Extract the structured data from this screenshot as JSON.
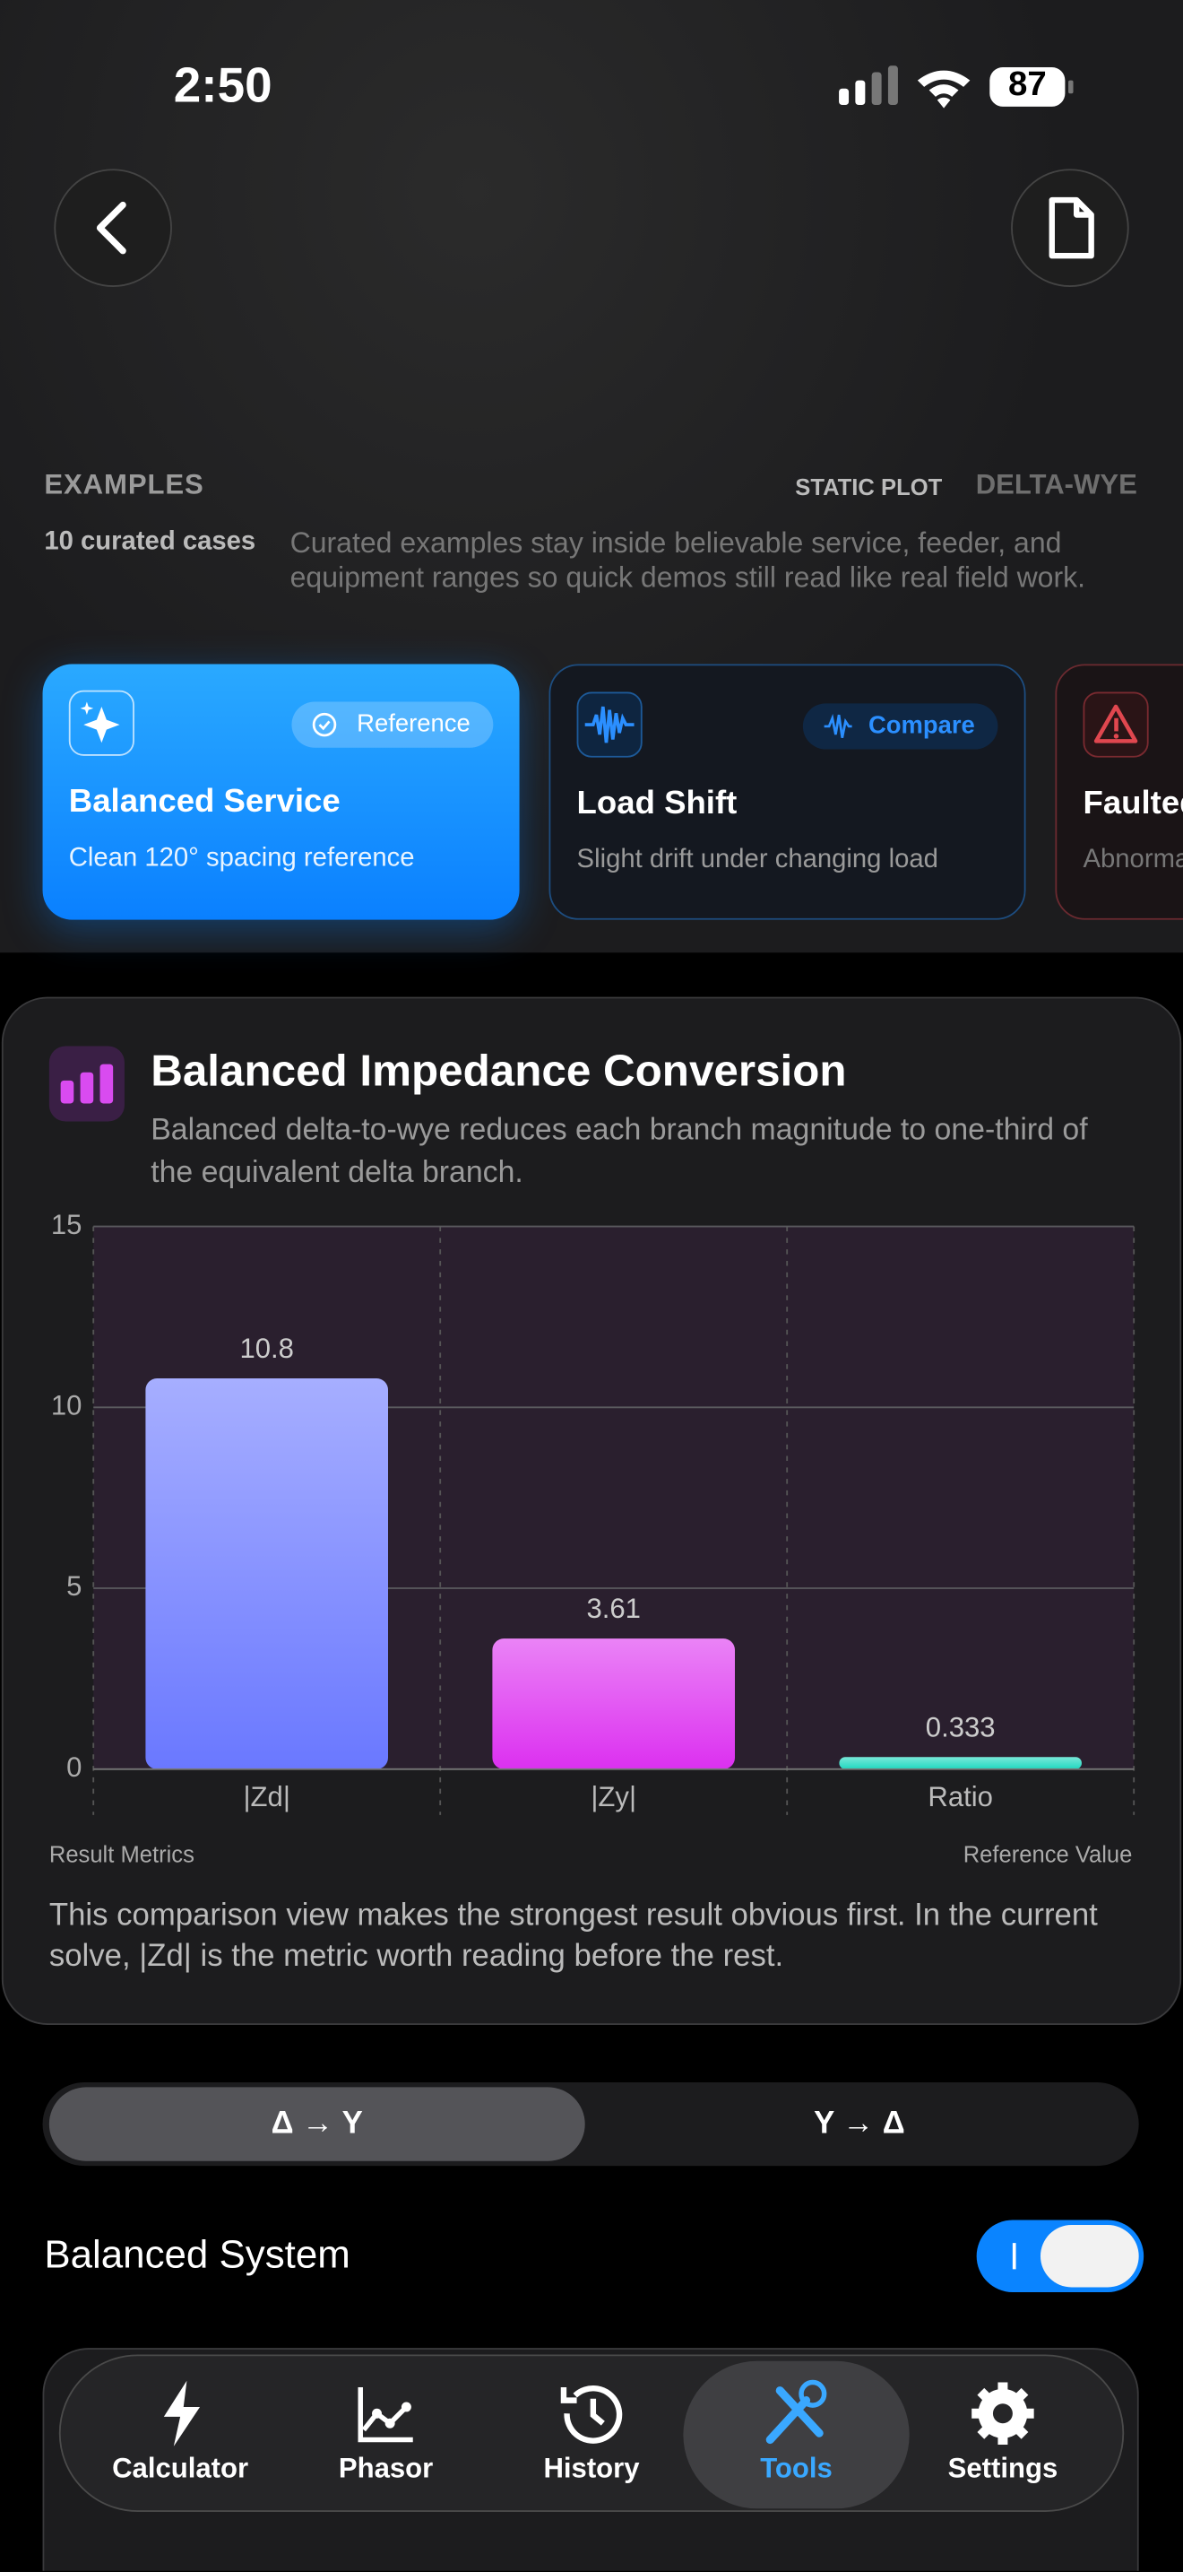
{
  "status": {
    "time": "2:50",
    "battery": "87"
  },
  "examples": {
    "heading": "EXAMPLES",
    "tags": [
      "STATIC PLOT",
      "DELTA-WYE"
    ],
    "count": "10 curated cases",
    "description": "Curated examples stay inside believable service, feeder, and equipment ranges so quick demos still read like real field work.",
    "cards": [
      {
        "title": "Balanced Service",
        "subtitle": "Clean 120° spacing reference",
        "badge": "Reference"
      },
      {
        "title": "Load Shift",
        "subtitle": "Slight drift under changing load",
        "badge": "Compare"
      },
      {
        "title": "Faulted",
        "subtitle": "Abnormal"
      }
    ]
  },
  "chart_data": {
    "type": "bar",
    "title": "Balanced Impedance Conversion",
    "subtitle": "Balanced delta-to-wye reduces each branch magnitude to one-third of the equivalent delta branch.",
    "categories": [
      "|Zd|",
      "|Zy|",
      "Ratio"
    ],
    "values": [
      10.8,
      3.61,
      0.333
    ],
    "colors": [
      "#6a78ff",
      "#dc30f0",
      "#1fd8c0"
    ],
    "ylim": [
      0,
      15
    ],
    "yticks": [
      0,
      5,
      10,
      15
    ],
    "grid": true,
    "x_label": "Result Metrics",
    "y_label": "Reference Value",
    "note": "This comparison view makes the strongest result obvious first. In the current solve, |Zd| is the metric worth reading before the rest."
  },
  "mode": {
    "options": [
      "Δ → Y",
      "Y → Δ"
    ],
    "selected": 0
  },
  "balanced": {
    "label": "Balanced System",
    "on": true
  },
  "tabs": {
    "items": [
      "Calculator",
      "Phasor",
      "History",
      "Tools",
      "Settings"
    ],
    "active": 3
  }
}
